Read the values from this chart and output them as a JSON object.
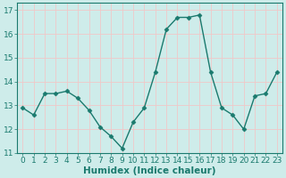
{
  "x": [
    0,
    1,
    2,
    3,
    4,
    5,
    6,
    7,
    8,
    9,
    10,
    11,
    12,
    13,
    14,
    15,
    16,
    17,
    18,
    19,
    20,
    21,
    22,
    23
  ],
  "y": [
    12.9,
    12.6,
    13.5,
    13.5,
    13.6,
    13.3,
    12.8,
    12.1,
    11.7,
    11.2,
    12.3,
    12.9,
    14.4,
    16.2,
    16.7,
    16.7,
    16.8,
    14.4,
    12.9,
    12.6,
    12.0,
    13.4,
    13.5,
    14.4
  ],
  "line_color": "#1a7a6e",
  "marker": "D",
  "marker_size": 2.5,
  "linewidth": 1.0,
  "bg_color": "#ceecea",
  "grid_color": "#f0c8c8",
  "xlabel": "Humidex (Indice chaleur)",
  "xlim": [
    -0.5,
    23.5
  ],
  "ylim": [
    11,
    17.3
  ],
  "yticks": [
    11,
    12,
    13,
    14,
    15,
    16,
    17
  ],
  "xticks": [
    0,
    1,
    2,
    3,
    4,
    5,
    6,
    7,
    8,
    9,
    10,
    11,
    12,
    13,
    14,
    15,
    16,
    17,
    18,
    19,
    20,
    21,
    22,
    23
  ],
  "xlabel_fontsize": 7.5,
  "tick_fontsize": 6.5,
  "tick_color": "#1a7a6e"
}
